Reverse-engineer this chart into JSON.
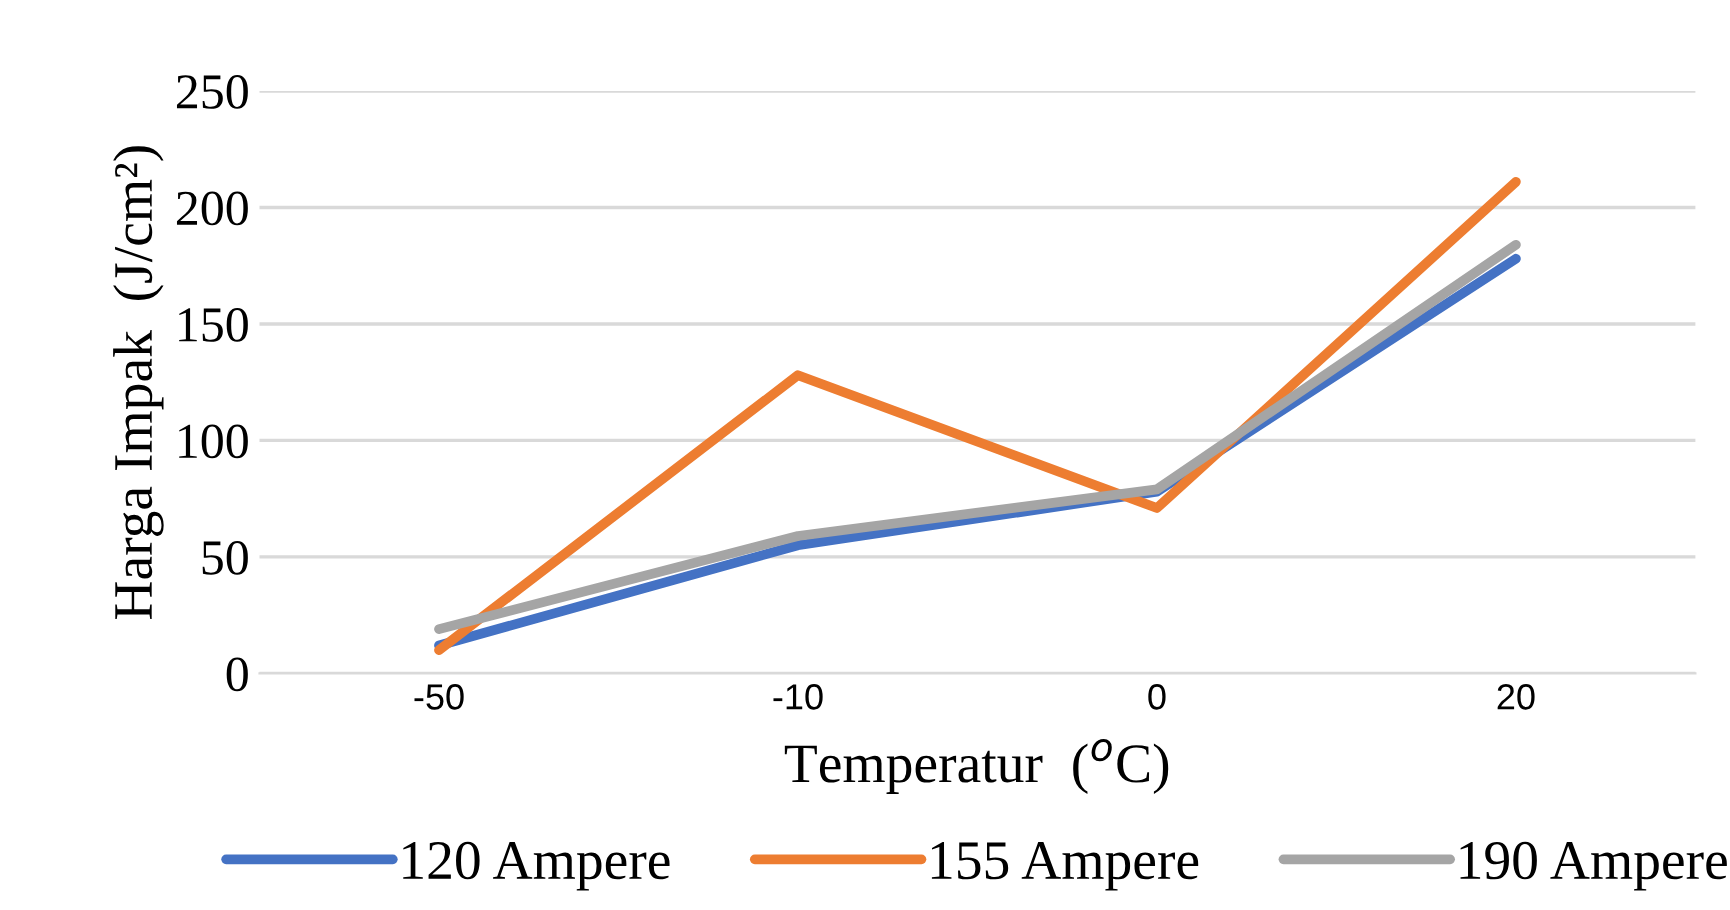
{
  "chart_data": {
    "type": "line",
    "xlabel": "Temperatur  ($^{o}$C)",
    "ylabel": "Harga Impak  (J/cm²)",
    "categories": [
      "-50",
      "-10",
      "0",
      "20"
    ],
    "series": [
      {
        "name": "120 Ampere",
        "color": "#4472c4",
        "values": [
          12,
          55,
          78,
          178
        ]
      },
      {
        "name": "155 Ampere",
        "color": "#ed7d31",
        "values": [
          10,
          128,
          71,
          211
        ]
      },
      {
        "name": "190 Ampere",
        "color": "#a5a5a5",
        "values": [
          19,
          59,
          79,
          184
        ]
      }
    ],
    "ylim": [
      0,
      250
    ],
    "yticks": [
      0,
      50,
      100,
      150,
      200,
      250
    ],
    "grid": "y",
    "legend": "bottom",
    "line_style": "solid",
    "marker": "none"
  }
}
